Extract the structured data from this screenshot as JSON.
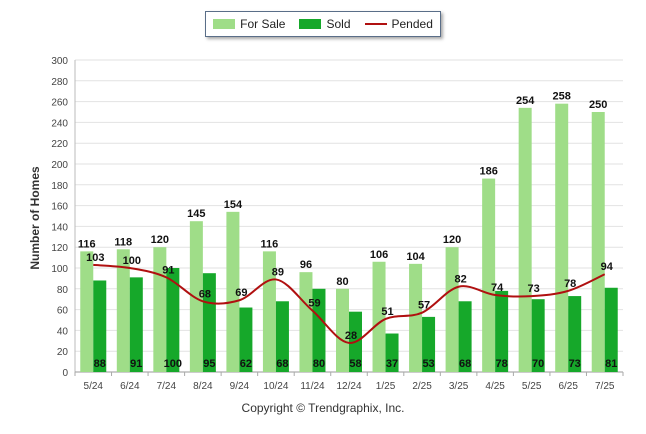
{
  "legend": {
    "for_sale": "For Sale",
    "sold": "Sold",
    "pended": "Pended"
  },
  "footer": "Copyright © Trendgraphix, Inc.",
  "colors": {
    "for_sale": "#9fdd88",
    "sold": "#16a82a",
    "pended": "#b01010",
    "grid": "#e2e2e2"
  },
  "chart_data": {
    "type": "bar",
    "categories": [
      "5/24",
      "6/24",
      "7/24",
      "8/24",
      "9/24",
      "10/24",
      "11/24",
      "12/24",
      "1/25",
      "2/25",
      "3/25",
      "4/25",
      "5/25",
      "6/25",
      "7/25"
    ],
    "series": [
      {
        "name": "For Sale",
        "type": "bar",
        "values": [
          116,
          118,
          120,
          145,
          154,
          116,
          96,
          80,
          106,
          104,
          120,
          186,
          254,
          258,
          250
        ]
      },
      {
        "name": "Sold",
        "type": "bar",
        "values": [
          88,
          91,
          100,
          95,
          62,
          68,
          80,
          58,
          37,
          53,
          68,
          78,
          70,
          73,
          81
        ]
      },
      {
        "name": "Pended",
        "type": "line",
        "values": [
          103,
          100,
          91,
          68,
          69,
          89,
          59,
          28,
          51,
          57,
          82,
          74,
          73,
          78,
          94
        ]
      }
    ],
    "xlabel": "",
    "ylabel": "Number of Homes",
    "ylim": [
      0,
      300
    ],
    "yticks": [
      0,
      20,
      40,
      60,
      80,
      100,
      120,
      140,
      160,
      180,
      200,
      220,
      240,
      260,
      280,
      300
    ],
    "grid": true,
    "legend_position": "top"
  }
}
